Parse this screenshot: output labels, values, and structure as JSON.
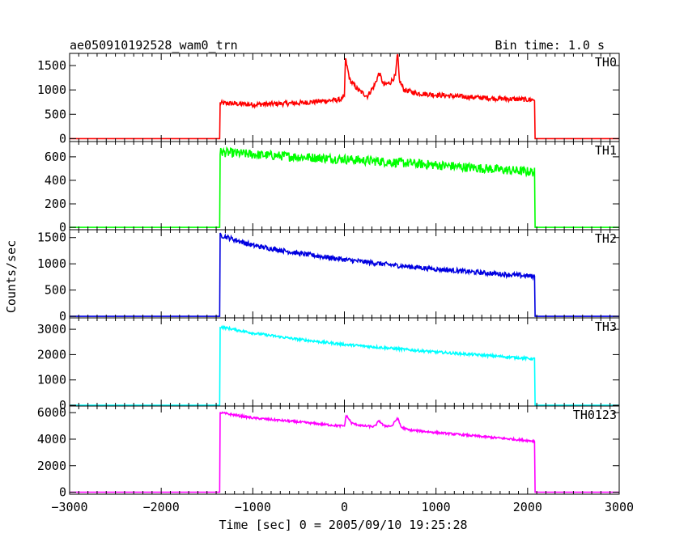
{
  "header": {
    "title": "ae050910192528_wam0_trn",
    "bin_time": "Bin time: 1.0 s"
  },
  "chart_data": {
    "type": "line",
    "title": "ae050910192528_wam0_trn",
    "xlabel": "Time [sec] 0 = 2005/09/10 19:25:28",
    "ylabel": "Counts/sec",
    "xlim": [
      -3000,
      3000
    ],
    "x_ticks": [
      -3000,
      -2000,
      -1000,
      0,
      1000,
      2000,
      3000
    ],
    "x_tick_labels": [
      "−3000",
      "−2000",
      "−1000",
      "0",
      "1000",
      "2000",
      "3000"
    ],
    "on_time": -1360,
    "off_time": 2080,
    "panels": [
      {
        "name": "TH0",
        "color": "#ff0000",
        "ylim": [
          -60,
          1750
        ],
        "y_ticks": [
          0,
          500,
          1000,
          1500
        ],
        "x": [
          -3000,
          -1360,
          -1359,
          -1000,
          -500,
          -50,
          0,
          10,
          60,
          150,
          250,
          330,
          380,
          430,
          500,
          560,
          580,
          600,
          650,
          800,
          1200,
          1600,
          2000,
          2079,
          2080,
          3000
        ],
        "y": [
          0,
          0,
          730,
          700,
          730,
          800,
          850,
          1650,
          1200,
          1000,
          870,
          1100,
          1350,
          1100,
          1150,
          1300,
          1780,
          1200,
          1000,
          930,
          870,
          830,
          800,
          800,
          0,
          0
        ],
        "noise": 50
      },
      {
        "name": "TH1",
        "color": "#00ff00",
        "ylim": [
          -20,
          730
        ],
        "y_ticks": [
          0,
          200,
          400,
          600
        ],
        "x": [
          -3000,
          -1360,
          -1359,
          -1000,
          0,
          1000,
          2079,
          2080,
          3000
        ],
        "y": [
          0,
          0,
          640,
          620,
          580,
          530,
          470,
          0,
          0
        ],
        "noise": 40
      },
      {
        "name": "TH2",
        "color": "#0000e0",
        "ylim": [
          -30,
          1650
        ],
        "y_ticks": [
          0,
          500,
          1000,
          1500
        ],
        "x": [
          -3000,
          -1360,
          -1359,
          -1000,
          -500,
          0,
          500,
          1000,
          1500,
          2079,
          2080,
          3000
        ],
        "y": [
          0,
          0,
          1550,
          1350,
          1200,
          1080,
          980,
          900,
          830,
          760,
          0,
          0
        ],
        "noise": 45
      },
      {
        "name": "TH3",
        "color": "#00ffff",
        "ylim": [
          -30,
          3450
        ],
        "y_ticks": [
          0,
          1000,
          2000,
          3000
        ],
        "x": [
          -3000,
          -1360,
          -1359,
          -1000,
          -500,
          0,
          500,
          1000,
          1500,
          2079,
          2080,
          3000
        ],
        "y": [
          0,
          0,
          3100,
          2850,
          2600,
          2400,
          2250,
          2100,
          1980,
          1830,
          0,
          0
        ],
        "noise": 50
      },
      {
        "name": "TH0123",
        "color": "#ff00ff",
        "ylim": [
          -150,
          6500
        ],
        "y_ticks": [
          0,
          2000,
          4000,
          6000
        ],
        "x": [
          -3000,
          -1360,
          -1359,
          -1000,
          -500,
          -50,
          0,
          20,
          80,
          200,
          330,
          380,
          430,
          520,
          580,
          620,
          700,
          1000,
          1500,
          2079,
          2080,
          3000
        ],
        "y": [
          0,
          0,
          6000,
          5600,
          5300,
          5000,
          5000,
          5800,
          5200,
          5000,
          4950,
          5400,
          5000,
          5000,
          5600,
          4900,
          4700,
          4500,
          4200,
          3850,
          0,
          0
        ],
        "noise": 80
      }
    ]
  }
}
